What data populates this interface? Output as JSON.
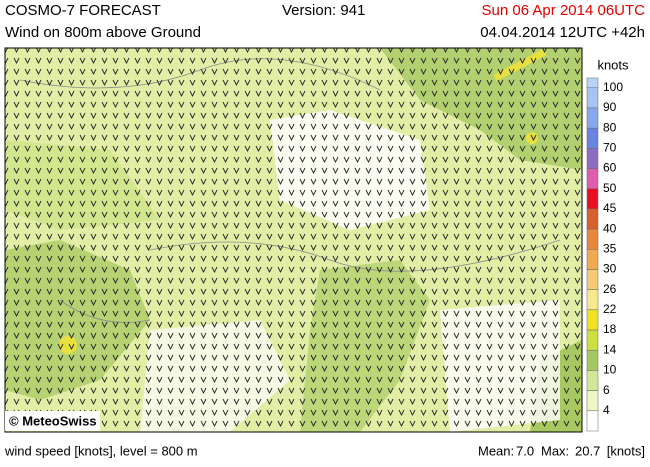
{
  "header": {
    "title": "COSMO-7 FORECAST",
    "version": "Version: 941",
    "valid_time": "Sun 06 Apr 2014 06UTC",
    "subtitle": "Wind on 800m above Ground",
    "run": "04.04.2014 12UTC +42h"
  },
  "map": {
    "credit": "© MeteoSwiss"
  },
  "legend": {
    "title": "knots",
    "levels": [
      "100",
      "90",
      "80",
      "70",
      "60",
      "50",
      "45",
      "40",
      "35",
      "30",
      "26",
      "22",
      "18",
      "14",
      "10",
      "6",
      "4"
    ],
    "colors": [
      "#b8d4f8",
      "#a8c4f2",
      "#88a8ec",
      "#6a84e2",
      "#8a6ec4",
      "#e05cb0",
      "#e8101e",
      "#d8602c",
      "#e8883c",
      "#f0aa52",
      "#f4cc74",
      "#f8e88e",
      "#f2e222",
      "#cce040",
      "#a6c862",
      "#d2e896",
      "#eef6c4",
      "#ffffff"
    ]
  },
  "footer": {
    "description": "wind speed [knots], level = 800 m",
    "mean_label": "Mean:",
    "mean": "7.0",
    "max_label": "Max:",
    "max": "20.7",
    "unit": "[knots]"
  }
}
